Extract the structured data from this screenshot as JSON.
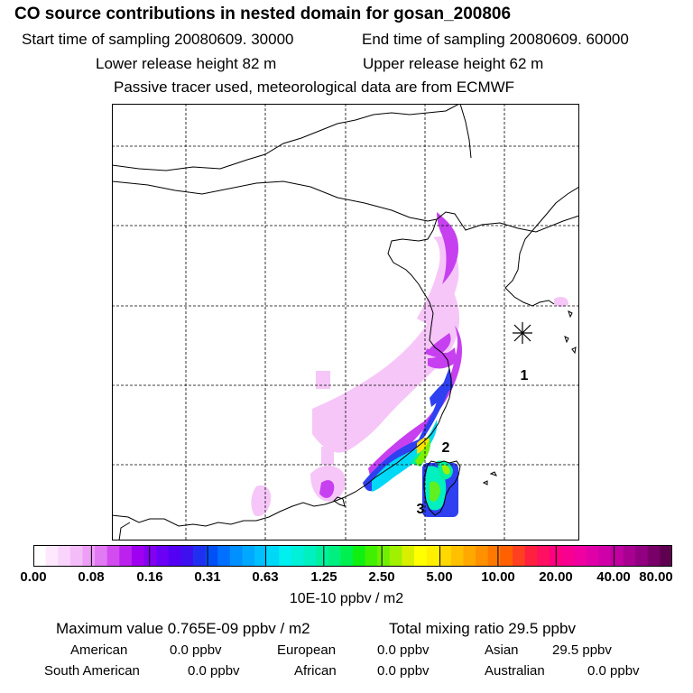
{
  "header": {
    "title": "CO  source contributions in nested domain for gosan_200806",
    "start_label": "Start time of sampling 20080609. 30000",
    "end_label": "End time of sampling 20080609. 60000",
    "lower_label": "Lower release height   82 m",
    "upper_label": "Upper release height   62 m",
    "note": "Passive tracer used, meteorological data are from ECMWF"
  },
  "map": {
    "labels": [
      "1",
      "2",
      "3"
    ],
    "receptor_marker": "asterisk-icon"
  },
  "colorbar": {
    "ticks": [
      "0.00",
      "0.08",
      "0.16",
      "0.31",
      "0.63",
      "1.25",
      "2.50",
      "5.00",
      "10.00",
      "20.00",
      "40.00",
      "80.00"
    ],
    "units": "10E-10 ppbv / m2",
    "colors": [
      "#ffffff",
      "#fde8fd",
      "#f9d4fb",
      "#f4bdf9",
      "#ed9ef6",
      "#e27af3",
      "#d24cf0",
      "#bb22ee",
      "#a000f0",
      "#8400f3",
      "#6a00f5",
      "#5400f5",
      "#3e10f0",
      "#2030f0",
      "#0050f8",
      "#0070ff",
      "#0090ff",
      "#00a8ff",
      "#00c0ff",
      "#00d8f8",
      "#00f0f0",
      "#00f0d8",
      "#00f0c0",
      "#00f0a0",
      "#00f080",
      "#00f050",
      "#10f010",
      "#40f000",
      "#70f000",
      "#a0f000",
      "#d8f000",
      "#ffff00",
      "#fff000",
      "#ffd800",
      "#ffc000",
      "#ffa800",
      "#ff9000",
      "#ff7800",
      "#ff6000",
      "#ff4020",
      "#ff2040",
      "#ff1060",
      "#ff0080",
      "#f80090",
      "#f000a0",
      "#e000a8",
      "#d000a8",
      "#c000a0",
      "#a80090",
      "#900080",
      "#780068",
      "#600050"
    ]
  },
  "summary": {
    "max_text": "Maximum value  0.765E-09 ppbv / m2",
    "total_text": "Total mixing ratio       29.5 ppbv",
    "american": "American",
    "american_val": "0.0 ppbv",
    "european": "European",
    "european_val": "0.0 ppbv",
    "asian": "Asian",
    "asian_val": "29.5 ppbv",
    "south_american": "South American",
    "south_american_val": "0.0 ppbv",
    "african": "African",
    "african_val": "0.0 ppbv",
    "australian": "Australian",
    "australian_val": "0.0 ppbv"
  }
}
